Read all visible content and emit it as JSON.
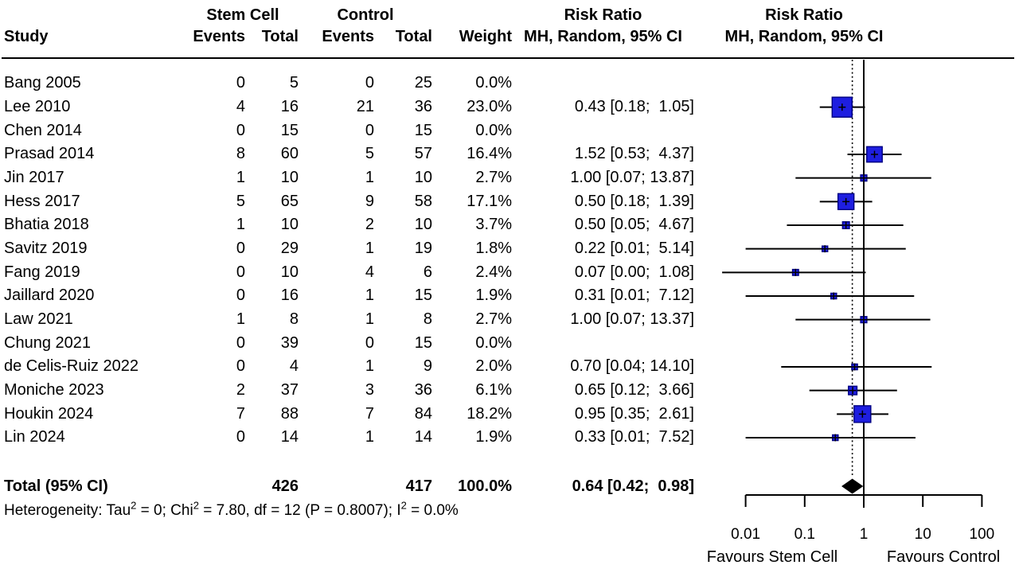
{
  "table": {
    "headers": {
      "group_stem_cell": "Stem Cell",
      "group_control": "Control",
      "study": "Study",
      "events": "Events",
      "total": "Total",
      "weight": "Weight",
      "risk_ratio_title": "Risk Ratio",
      "risk_ratio_subtitle": "MH, Random, 95% CI"
    }
  },
  "plot_column": {
    "title": "Risk Ratio",
    "subtitle": "MH, Random, 95% CI"
  },
  "chart_data": {
    "type": "forest",
    "x_axis": {
      "scale": "log10",
      "ticks": [
        0.01,
        0.1,
        1,
        10,
        100
      ],
      "ref_line": 1,
      "overall_dotted_line": 0.64,
      "label_left": "Favours Stem Cell",
      "label_right": "Favours Control"
    },
    "marker_fill": "#1e1ee0",
    "marker_border": "#000080",
    "line_color": "#000000",
    "studies": [
      {
        "study": "Bang 2005",
        "sc_events": "0",
        "sc_total": "5",
        "c_events": "0",
        "c_total": "25",
        "weight_text": "0.0%",
        "weight": 0,
        "rr_text": "",
        "rr": null,
        "lo": null,
        "hi": null
      },
      {
        "study": "Lee 2010",
        "sc_events": "4",
        "sc_total": "16",
        "c_events": "21",
        "c_total": "36",
        "weight_text": "23.0%",
        "weight": 23.0,
        "rr_text": "0.43 [0.18;  1.05]",
        "rr": 0.43,
        "lo": 0.18,
        "hi": 1.05
      },
      {
        "study": "Chen 2014",
        "sc_events": "0",
        "sc_total": "15",
        "c_events": "0",
        "c_total": "15",
        "weight_text": "0.0%",
        "weight": 0,
        "rr_text": "",
        "rr": null,
        "lo": null,
        "hi": null
      },
      {
        "study": "Prasad 2014",
        "sc_events": "8",
        "sc_total": "60",
        "c_events": "5",
        "c_total": "57",
        "weight_text": "16.4%",
        "weight": 16.4,
        "rr_text": "1.52 [0.53;  4.37]",
        "rr": 1.52,
        "lo": 0.53,
        "hi": 4.37
      },
      {
        "study": "Jin 2017",
        "sc_events": "1",
        "sc_total": "10",
        "c_events": "1",
        "c_total": "10",
        "weight_text": "2.7%",
        "weight": 2.7,
        "rr_text": "1.00 [0.07; 13.87]",
        "rr": 1.0,
        "lo": 0.07,
        "hi": 13.87
      },
      {
        "study": "Hess 2017",
        "sc_events": "5",
        "sc_total": "65",
        "c_events": "9",
        "c_total": "58",
        "weight_text": "17.1%",
        "weight": 17.1,
        "rr_text": "0.50 [0.18;  1.39]",
        "rr": 0.5,
        "lo": 0.18,
        "hi": 1.39
      },
      {
        "study": "Bhatia 2018",
        "sc_events": "1",
        "sc_total": "10",
        "c_events": "2",
        "c_total": "10",
        "weight_text": "3.7%",
        "weight": 3.7,
        "rr_text": "0.50 [0.05;  4.67]",
        "rr": 0.5,
        "lo": 0.05,
        "hi": 4.67
      },
      {
        "study": "Savitz 2019",
        "sc_events": "0",
        "sc_total": "29",
        "c_events": "1",
        "c_total": "19",
        "weight_text": "1.8%",
        "weight": 1.8,
        "rr_text": "0.22 [0.01;  5.14]",
        "rr": 0.22,
        "lo": 0.01,
        "hi": 5.14
      },
      {
        "study": "Fang 2019",
        "sc_events": "0",
        "sc_total": "10",
        "c_events": "4",
        "c_total": "6",
        "weight_text": "2.4%",
        "weight": 2.4,
        "rr_text": "0.07 [0.00;  1.08]",
        "rr": 0.07,
        "lo": 0.0,
        "plot_lo": 0.004,
        "hi": 1.08
      },
      {
        "study": "Jaillard 2020",
        "sc_events": "0",
        "sc_total": "16",
        "c_events": "1",
        "c_total": "15",
        "weight_text": "1.9%",
        "weight": 1.9,
        "rr_text": "0.31 [0.01;  7.12]",
        "rr": 0.31,
        "lo": 0.01,
        "hi": 7.12
      },
      {
        "study": "Law 2021",
        "sc_events": "1",
        "sc_total": "8",
        "c_events": "1",
        "c_total": "8",
        "weight_text": "2.7%",
        "weight": 2.7,
        "rr_text": "1.00 [0.07; 13.37]",
        "rr": 1.0,
        "lo": 0.07,
        "hi": 13.37
      },
      {
        "study": "Chung 2021",
        "sc_events": "0",
        "sc_total": "39",
        "c_events": "0",
        "c_total": "15",
        "weight_text": "0.0%",
        "weight": 0,
        "rr_text": "",
        "rr": null,
        "lo": null,
        "hi": null
      },
      {
        "study": "de Celis-Ruiz 2022",
        "sc_events": "0",
        "sc_total": "4",
        "c_events": "1",
        "c_total": "9",
        "weight_text": "2.0%",
        "weight": 2.0,
        "rr_text": "0.70 [0.04; 14.10]",
        "rr": 0.7,
        "lo": 0.04,
        "hi": 14.1
      },
      {
        "study": "Moniche 2023",
        "sc_events": "2",
        "sc_total": "37",
        "c_events": "3",
        "c_total": "36",
        "weight_text": "6.1%",
        "weight": 6.1,
        "rr_text": "0.65 [0.12;  3.66]",
        "rr": 0.65,
        "lo": 0.12,
        "hi": 3.66
      },
      {
        "study": "Houkin 2024",
        "sc_events": "7",
        "sc_total": "88",
        "c_events": "7",
        "c_total": "84",
        "weight_text": "18.2%",
        "weight": 18.2,
        "rr_text": "0.95 [0.35;  2.61]",
        "rr": 0.95,
        "lo": 0.35,
        "hi": 2.61
      },
      {
        "study": "Lin 2024",
        "sc_events": "0",
        "sc_total": "14",
        "c_events": "1",
        "c_total": "14",
        "weight_text": "1.9%",
        "weight": 1.9,
        "rr_text": "0.33 [0.01;  7.52]",
        "rr": 0.33,
        "lo": 0.01,
        "hi": 7.52
      }
    ],
    "total": {
      "label": "Total (95% CI)",
      "sc_total": "426",
      "c_total": "417",
      "weight_text": "100.0%",
      "rr_text": "0.64 [0.42;  0.98]",
      "rr": 0.64,
      "lo": 0.42,
      "hi": 0.98
    },
    "heterogeneity_segments": [
      {
        "text": "Heterogeneity: Tau"
      },
      {
        "sup": "2"
      },
      {
        "text": " = 0; Chi"
      },
      {
        "sup": "2"
      },
      {
        "text": " = 7.80, df = 12 (P = 0.8007); I"
      },
      {
        "sup": "2"
      },
      {
        "text": " = 0.0%"
      }
    ]
  }
}
